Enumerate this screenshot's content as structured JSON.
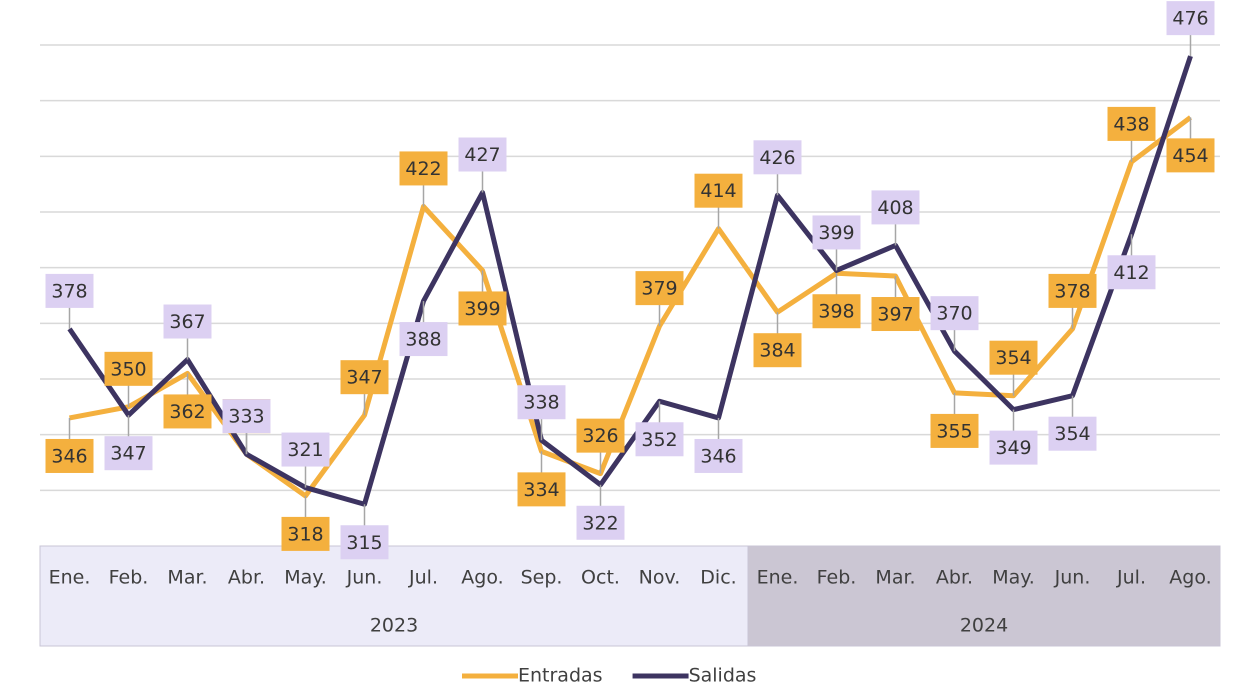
{
  "chart_data": {
    "type": "line",
    "categories": [
      "Ene.",
      "Feb.",
      "Mar.",
      "Abr.",
      "May.",
      "Jun.",
      "Jul.",
      "Ago.",
      "Sep.",
      "Oct.",
      "Nov.",
      "Dic.",
      "Ene.",
      "Feb.",
      "Mar.",
      "Abr.",
      "May.",
      "Jun.",
      "Jul.",
      "Ago."
    ],
    "x_groups": [
      {
        "label": "2023",
        "count": 12
      },
      {
        "label": "2024",
        "count": 8
      }
    ],
    "series": [
      {
        "name": "Entradas",
        "color": "#f4b03e",
        "label_color": "#f4b03e",
        "values": [
          346,
          350,
          362,
          333,
          318,
          347,
          422,
          399,
          334,
          326,
          379,
          414,
          384,
          398,
          397,
          355,
          354,
          378,
          438,
          454
        ]
      },
      {
        "name": "Salidas",
        "color": "#3d3461",
        "label_color": "#dcd0f2",
        "values": [
          378,
          347,
          367,
          333,
          321,
          315,
          388,
          427,
          338,
          322,
          352,
          346,
          426,
          399,
          408,
          370,
          349,
          354,
          412,
          476
        ]
      }
    ],
    "ylim": [
      300,
      480
    ],
    "yticks": [
      320,
      340,
      360,
      380,
      400,
      420,
      440,
      460,
      480
    ],
    "grid": true,
    "legend": "bottom"
  }
}
